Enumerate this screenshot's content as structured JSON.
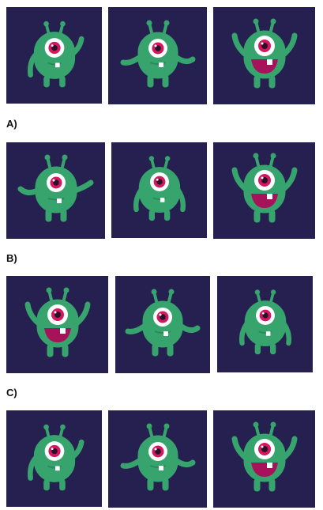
{
  "labels": {
    "a": "A)",
    "b": "B)",
    "c": "C)"
  },
  "rows": [
    [
      "one-arm-up",
      "both-arms-out",
      "arms-up-mouth-open"
    ],
    [
      "one-arm-out",
      "arms-down",
      "arms-up-mouth-open"
    ],
    [
      "arms-up-mouth-open",
      "both-arms-out",
      "arms-down"
    ],
    [
      "one-arm-up",
      "both-arms-out",
      "arms-up-mouth-open"
    ]
  ],
  "colors": {
    "panel_bg": "#25204f",
    "monster_body": "#37a46e",
    "eye_ring": "#d4185c",
    "mouth": "#a6135a"
  }
}
